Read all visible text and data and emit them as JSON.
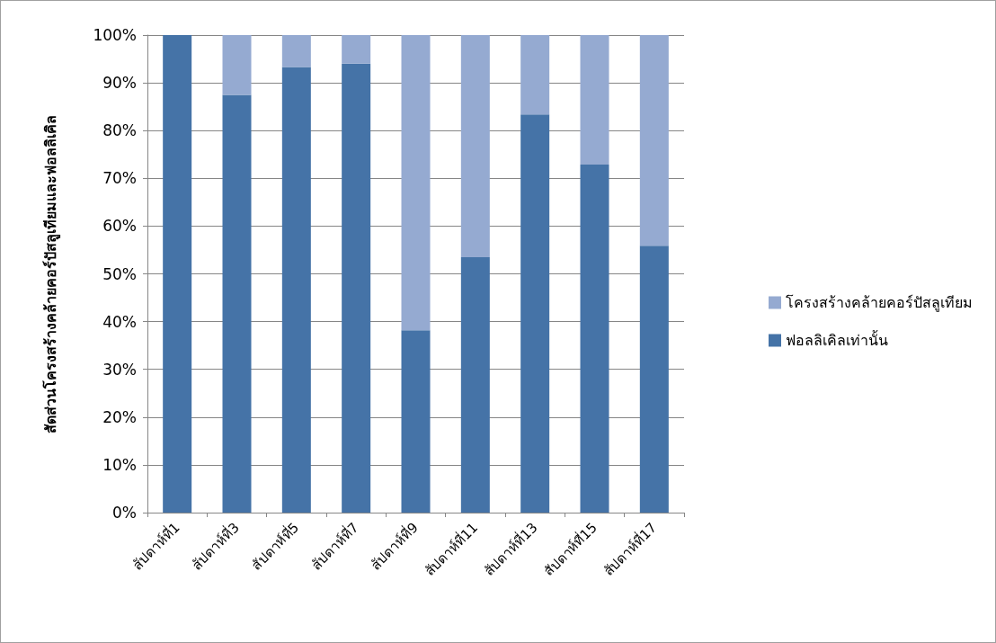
{
  "chart_data": {
    "type": "bar",
    "stacked": true,
    "ylabel": "สัดส่วนโครงสร้างคล้ายคอร์ปัสลูเทียมและฟอลลิเคิล",
    "categories": [
      "สัปดาห์ที่1",
      "สัปดาห์ที่3",
      "สัปดาห์ที่5",
      "สัปดาห์ที่7",
      "สัปดาห์ที่9",
      "สัปดาห์ที่11",
      "สัปดาห์ที่13",
      "สัปดาห์ที่15",
      "สัปดาห์ที่17"
    ],
    "series": [
      {
        "name": "ฟอลลิเคิลเท่านั้น",
        "color": "#4573a7",
        "values": [
          100,
          87.5,
          93.3,
          94.0,
          38.2,
          53.5,
          83.4,
          72.9,
          55.9
        ]
      },
      {
        "name": "โครงสร้างคล้ายคอร์ปัสลูเทียม",
        "color": "#95aad1",
        "values": [
          0,
          12.5,
          6.7,
          6.0,
          61.8,
          46.5,
          16.6,
          27.1,
          44.1
        ]
      }
    ],
    "ylim": [
      0,
      100
    ],
    "yticks": [
      {
        "value": 0,
        "label": "0%"
      },
      {
        "value": 10,
        "label": "10%"
      },
      {
        "value": 20,
        "label": "20%"
      },
      {
        "value": 30,
        "label": "30%"
      },
      {
        "value": 40,
        "label": "40%"
      },
      {
        "value": 50,
        "label": "50%"
      },
      {
        "value": 60,
        "label": "60%"
      },
      {
        "value": 70,
        "label": "70%"
      },
      {
        "value": 80,
        "label": "80%"
      },
      {
        "value": 90,
        "label": "90%"
      },
      {
        "value": 100,
        "label": "100%"
      }
    ],
    "grid": "y",
    "legend": "right"
  }
}
